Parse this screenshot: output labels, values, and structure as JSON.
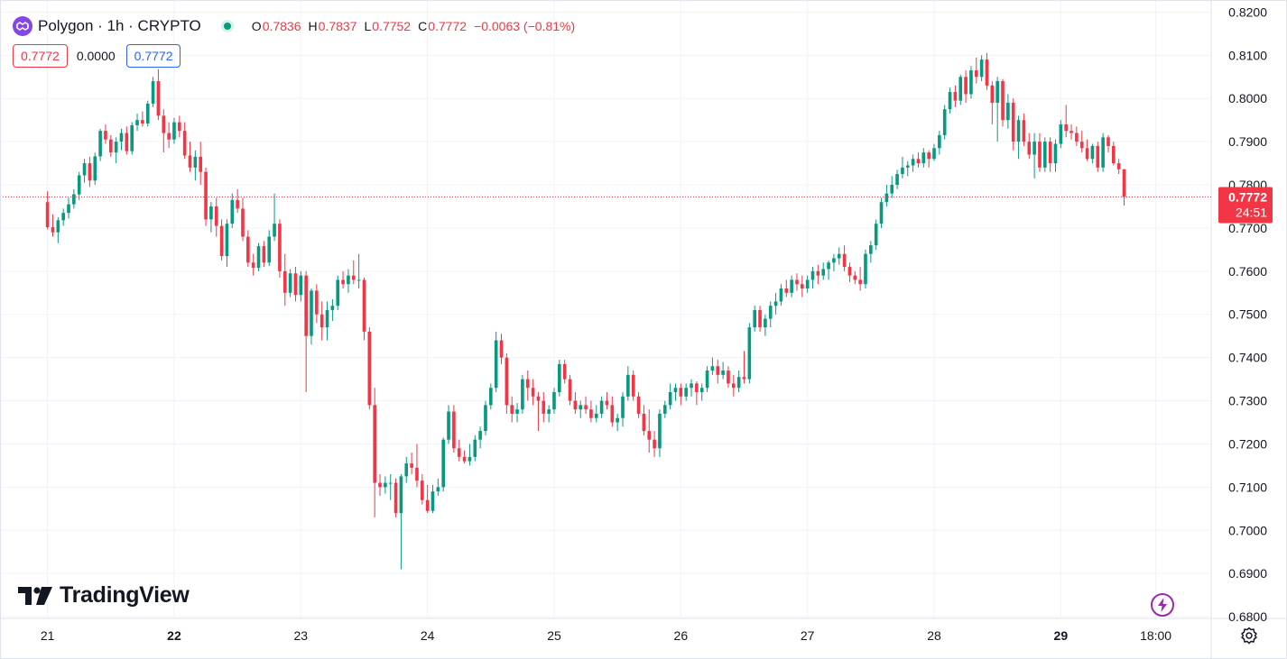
{
  "header": {
    "symbol_title": "Polygon · 1h · CRYPTO",
    "open_label": "O",
    "open": "0.7836",
    "high_label": "H",
    "high": "0.7837",
    "low_label": "L",
    "low": "0.7752",
    "close_label": "C",
    "close": "0.7772",
    "change": "−0.0063 (−0.81%)",
    "icons": {
      "symbol": "polygon-logo-icon",
      "status": "market-open-dot-icon"
    }
  },
  "quick_trade": {
    "sell_price": "0.7772",
    "spread": "0.0000",
    "buy_price": "0.7772"
  },
  "branding": {
    "logo_text": "TradingView",
    "logo_icon": "tradingview-logo-icon"
  },
  "toolbar": {
    "flash_icon": "lightning-icon",
    "settings_icon": "gear-icon"
  },
  "price_label": {
    "price": "0.7772",
    "countdown": "24:51"
  },
  "colors": {
    "up": "#089981",
    "down": "#f23645",
    "grid": "#f0f3fa",
    "text": "#131722",
    "accent": "#2962ff",
    "brand_purple": "#8247e5"
  },
  "chart_data": {
    "type": "candlestick",
    "title": "Polygon · 1h · CRYPTO",
    "timeframe": "1h",
    "y_ticks": [
      "0.6800",
      "0.6900",
      "0.7000",
      "0.7100",
      "0.7200",
      "0.7300",
      "0.7400",
      "0.7500",
      "0.7600",
      "0.7700",
      "0.7800",
      "0.7900",
      "0.8000",
      "0.8100",
      "0.8200"
    ],
    "ylim": [
      0.6796,
      0.8228
    ],
    "x_ticks": [
      {
        "label": "21",
        "x": 0,
        "bold": false
      },
      {
        "label": "22",
        "x": 24,
        "bold": true
      },
      {
        "label": "23",
        "x": 48,
        "bold": false
      },
      {
        "label": "24",
        "x": 72,
        "bold": false
      },
      {
        "label": "25",
        "x": 96,
        "bold": false
      },
      {
        "label": "26",
        "x": 120,
        "bold": false
      },
      {
        "label": "27",
        "x": 144,
        "bold": false
      },
      {
        "label": "28",
        "x": 168,
        "bold": false
      },
      {
        "label": "29",
        "x": 192,
        "bold": true
      },
      {
        "label": "18:00",
        "x": 210,
        "bold": false
      }
    ],
    "xlim": [
      -9,
      220.5
    ],
    "last_price": 0.7772,
    "grid": true,
    "candles": [
      [
        0.776,
        0.7785,
        0.7697,
        0.7702
      ],
      [
        0.7702,
        0.7732,
        0.768,
        0.769
      ],
      [
        0.769,
        0.7725,
        0.7665,
        0.7718
      ],
      [
        0.7718,
        0.7745,
        0.7705,
        0.7735
      ],
      [
        0.7735,
        0.777,
        0.7722,
        0.7755
      ],
      [
        0.7755,
        0.779,
        0.7745,
        0.7778
      ],
      [
        0.7778,
        0.783,
        0.7765,
        0.7822
      ],
      [
        0.7822,
        0.786,
        0.7805,
        0.785
      ],
      [
        0.785,
        0.7865,
        0.7795,
        0.781
      ],
      [
        0.781,
        0.7875,
        0.78,
        0.7866
      ],
      [
        0.7866,
        0.793,
        0.7855,
        0.7925
      ],
      [
        0.7925,
        0.794,
        0.7895,
        0.7905
      ],
      [
        0.7905,
        0.7915,
        0.7865,
        0.7875
      ],
      [
        0.7875,
        0.791,
        0.785,
        0.79
      ],
      [
        0.79,
        0.793,
        0.788,
        0.792
      ],
      [
        0.792,
        0.7935,
        0.787,
        0.7878
      ],
      [
        0.7878,
        0.7945,
        0.787,
        0.7938
      ],
      [
        0.7938,
        0.7965,
        0.7925,
        0.795
      ],
      [
        0.795,
        0.797,
        0.7935,
        0.7942
      ],
      [
        0.7942,
        0.7995,
        0.7935,
        0.7988
      ],
      [
        0.7988,
        0.805,
        0.798,
        0.804
      ],
      [
        0.804,
        0.8068,
        0.795,
        0.796
      ],
      [
        0.796,
        0.7975,
        0.7875,
        0.792
      ],
      [
        0.792,
        0.7945,
        0.7885,
        0.7905
      ],
      [
        0.7905,
        0.7955,
        0.7895,
        0.7945
      ],
      [
        0.7945,
        0.796,
        0.791,
        0.7925
      ],
      [
        0.7925,
        0.7945,
        0.786,
        0.7868
      ],
      [
        0.7868,
        0.79,
        0.783,
        0.784
      ],
      [
        0.784,
        0.788,
        0.781,
        0.7865
      ],
      [
        0.7865,
        0.79,
        0.78,
        0.783
      ],
      [
        0.783,
        0.784,
        0.7705,
        0.772
      ],
      [
        0.772,
        0.776,
        0.769,
        0.775
      ],
      [
        0.775,
        0.777,
        0.768,
        0.7705
      ],
      [
        0.7705,
        0.772,
        0.7625,
        0.7635
      ],
      [
        0.7635,
        0.772,
        0.761,
        0.771
      ],
      [
        0.771,
        0.778,
        0.77,
        0.7765
      ],
      [
        0.7765,
        0.779,
        0.7735,
        0.7745
      ],
      [
        0.7745,
        0.777,
        0.767,
        0.768
      ],
      [
        0.768,
        0.7695,
        0.761,
        0.762
      ],
      [
        0.762,
        0.764,
        0.759,
        0.7608
      ],
      [
        0.7608,
        0.7665,
        0.76,
        0.7658
      ],
      [
        0.7658,
        0.767,
        0.761,
        0.762
      ],
      [
        0.762,
        0.7695,
        0.7612,
        0.768
      ],
      [
        0.768,
        0.778,
        0.767,
        0.771
      ],
      [
        0.771,
        0.772,
        0.7585,
        0.76
      ],
      [
        0.76,
        0.764,
        0.752,
        0.755
      ],
      [
        0.755,
        0.7605,
        0.754,
        0.7595
      ],
      [
        0.7595,
        0.761,
        0.753,
        0.7545
      ],
      [
        0.7545,
        0.76,
        0.753,
        0.759
      ],
      [
        0.759,
        0.76,
        0.732,
        0.745
      ],
      [
        0.745,
        0.756,
        0.743,
        0.7555
      ],
      [
        0.7555,
        0.757,
        0.748,
        0.75
      ],
      [
        0.75,
        0.753,
        0.744,
        0.747
      ],
      [
        0.747,
        0.753,
        0.744,
        0.751
      ],
      [
        0.751,
        0.7535,
        0.7485,
        0.752
      ],
      [
        0.752,
        0.759,
        0.751,
        0.758
      ],
      [
        0.758,
        0.76,
        0.756,
        0.757
      ],
      [
        0.757,
        0.7605,
        0.755,
        0.759
      ],
      [
        0.759,
        0.7625,
        0.757,
        0.758
      ],
      [
        0.758,
        0.764,
        0.756,
        0.758
      ],
      [
        0.758,
        0.7585,
        0.744,
        0.746
      ],
      [
        0.746,
        0.747,
        0.728,
        0.729
      ],
      [
        0.729,
        0.733,
        0.703,
        0.711
      ],
      [
        0.711,
        0.713,
        0.708,
        0.71
      ],
      [
        0.71,
        0.7125,
        0.7085,
        0.711
      ],
      [
        0.711,
        0.713,
        0.707,
        0.711
      ],
      [
        0.711,
        0.712,
        0.703,
        0.704
      ],
      [
        0.704,
        0.713,
        0.691,
        0.7125
      ],
      [
        0.7125,
        0.717,
        0.711,
        0.7155
      ],
      [
        0.7155,
        0.718,
        0.713,
        0.7145
      ],
      [
        0.7145,
        0.72,
        0.71,
        0.7115
      ],
      [
        0.7115,
        0.713,
        0.706,
        0.707
      ],
      [
        0.707,
        0.7105,
        0.704,
        0.7045
      ],
      [
        0.7045,
        0.7105,
        0.704,
        0.709
      ],
      [
        0.709,
        0.712,
        0.708,
        0.71
      ],
      [
        0.71,
        0.7215,
        0.709,
        0.721
      ],
      [
        0.721,
        0.729,
        0.72,
        0.7275
      ],
      [
        0.7275,
        0.729,
        0.718,
        0.719
      ],
      [
        0.719,
        0.721,
        0.716,
        0.717
      ],
      [
        0.717,
        0.7185,
        0.7155,
        0.716
      ],
      [
        0.716,
        0.72,
        0.715,
        0.717
      ],
      [
        0.717,
        0.722,
        0.716,
        0.721
      ],
      [
        0.721,
        0.724,
        0.719,
        0.723
      ],
      [
        0.723,
        0.73,
        0.722,
        0.729
      ],
      [
        0.729,
        0.734,
        0.728,
        0.733
      ],
      [
        0.733,
        0.746,
        0.732,
        0.744
      ],
      [
        0.744,
        0.7455,
        0.7385,
        0.74
      ],
      [
        0.74,
        0.741,
        0.727,
        0.729
      ],
      [
        0.729,
        0.731,
        0.725,
        0.727
      ],
      [
        0.727,
        0.7295,
        0.725,
        0.728
      ],
      [
        0.728,
        0.736,
        0.727,
        0.735
      ],
      [
        0.735,
        0.737,
        0.73,
        0.733
      ],
      [
        0.733,
        0.735,
        0.729,
        0.731
      ],
      [
        0.731,
        0.732,
        0.723,
        0.73
      ],
      [
        0.73,
        0.732,
        0.725,
        0.727
      ],
      [
        0.727,
        0.729,
        0.725,
        0.728
      ],
      [
        0.728,
        0.733,
        0.727,
        0.732
      ],
      [
        0.732,
        0.7395,
        0.731,
        0.7385
      ],
      [
        0.7385,
        0.7395,
        0.734,
        0.735
      ],
      [
        0.735,
        0.736,
        0.729,
        0.73
      ],
      [
        0.73,
        0.732,
        0.727,
        0.728
      ],
      [
        0.728,
        0.73,
        0.726,
        0.729
      ],
      [
        0.729,
        0.731,
        0.727,
        0.728
      ],
      [
        0.728,
        0.73,
        0.725,
        0.726
      ],
      [
        0.726,
        0.729,
        0.725,
        0.727
      ],
      [
        0.727,
        0.731,
        0.726,
        0.73
      ],
      [
        0.73,
        0.732,
        0.728,
        0.729
      ],
      [
        0.729,
        0.731,
        0.724,
        0.725
      ],
      [
        0.725,
        0.727,
        0.723,
        0.726
      ],
      [
        0.726,
        0.732,
        0.724,
        0.731
      ],
      [
        0.731,
        0.738,
        0.73,
        0.736
      ],
      [
        0.736,
        0.737,
        0.73,
        0.731
      ],
      [
        0.731,
        0.732,
        0.726,
        0.727
      ],
      [
        0.727,
        0.729,
        0.722,
        0.723
      ],
      [
        0.723,
        0.728,
        0.718,
        0.721
      ],
      [
        0.721,
        0.723,
        0.717,
        0.719
      ],
      [
        0.719,
        0.728,
        0.717,
        0.727
      ],
      [
        0.727,
        0.73,
        0.726,
        0.729
      ],
      [
        0.729,
        0.734,
        0.728,
        0.732
      ],
      [
        0.732,
        0.734,
        0.73,
        0.733
      ],
      [
        0.733,
        0.734,
        0.729,
        0.731
      ],
      [
        0.731,
        0.734,
        0.73,
        0.733
      ],
      [
        0.733,
        0.735,
        0.731,
        0.734
      ],
      [
        0.734,
        0.7345,
        0.729,
        0.732
      ],
      [
        0.732,
        0.734,
        0.73,
        0.733
      ],
      [
        0.733,
        0.738,
        0.732,
        0.737
      ],
      [
        0.737,
        0.74,
        0.736,
        0.738
      ],
      [
        0.738,
        0.7395,
        0.734,
        0.736
      ],
      [
        0.736,
        0.739,
        0.735,
        0.737
      ],
      [
        0.737,
        0.738,
        0.733,
        0.734
      ],
      [
        0.734,
        0.736,
        0.731,
        0.733
      ],
      [
        0.733,
        0.737,
        0.732,
        0.7355
      ],
      [
        0.7355,
        0.7415,
        0.734,
        0.735
      ],
      [
        0.735,
        0.748,
        0.734,
        0.747
      ],
      [
        0.747,
        0.752,
        0.746,
        0.751
      ],
      [
        0.751,
        0.752,
        0.746,
        0.747
      ],
      [
        0.747,
        0.75,
        0.745,
        0.749
      ],
      [
        0.749,
        0.753,
        0.747,
        0.752
      ],
      [
        0.752,
        0.755,
        0.75,
        0.753
      ],
      [
        0.753,
        0.757,
        0.752,
        0.756
      ],
      [
        0.756,
        0.758,
        0.754,
        0.755
      ],
      [
        0.755,
        0.759,
        0.754,
        0.758
      ],
      [
        0.758,
        0.7595,
        0.7555,
        0.757
      ],
      [
        0.757,
        0.759,
        0.754,
        0.756
      ],
      [
        0.756,
        0.759,
        0.755,
        0.758
      ],
      [
        0.758,
        0.761,
        0.756,
        0.76
      ],
      [
        0.76,
        0.7615,
        0.757,
        0.759
      ],
      [
        0.759,
        0.762,
        0.758,
        0.7605
      ],
      [
        0.7605,
        0.7625,
        0.758,
        0.762
      ],
      [
        0.762,
        0.764,
        0.76,
        0.763
      ],
      [
        0.763,
        0.7655,
        0.7615,
        0.764
      ],
      [
        0.764,
        0.766,
        0.76,
        0.761
      ],
      [
        0.761,
        0.762,
        0.7575,
        0.759
      ],
      [
        0.759,
        0.76,
        0.757,
        0.758
      ],
      [
        0.758,
        0.761,
        0.7555,
        0.757
      ],
      [
        0.757,
        0.765,
        0.756,
        0.764
      ],
      [
        0.764,
        0.767,
        0.762,
        0.766
      ],
      [
        0.766,
        0.772,
        0.765,
        0.771
      ],
      [
        0.771,
        0.777,
        0.77,
        0.776
      ],
      [
        0.776,
        0.78,
        0.775,
        0.778
      ],
      [
        0.778,
        0.782,
        0.777,
        0.78
      ],
      [
        0.78,
        0.7835,
        0.779,
        0.7825
      ],
      [
        0.7825,
        0.7865,
        0.7815,
        0.784
      ],
      [
        0.784,
        0.7855,
        0.782,
        0.7845
      ],
      [
        0.7845,
        0.787,
        0.783,
        0.786
      ],
      [
        0.786,
        0.7875,
        0.784,
        0.785
      ],
      [
        0.785,
        0.7885,
        0.784,
        0.7875
      ],
      [
        0.7875,
        0.788,
        0.784,
        0.786
      ],
      [
        0.786,
        0.7895,
        0.7855,
        0.7885
      ],
      [
        0.7885,
        0.7925,
        0.787,
        0.7915
      ],
      [
        0.7915,
        0.7985,
        0.7905,
        0.7975
      ],
      [
        0.7975,
        0.8025,
        0.7965,
        0.8015
      ],
      [
        0.8015,
        0.803,
        0.798,
        0.7995
      ],
      [
        0.7995,
        0.8055,
        0.7985,
        0.805
      ],
      [
        0.805,
        0.8065,
        0.799,
        0.801
      ],
      [
        0.801,
        0.8075,
        0.8,
        0.8065
      ],
      [
        0.8065,
        0.8095,
        0.8035,
        0.805
      ],
      [
        0.805,
        0.81,
        0.804,
        0.809
      ],
      [
        0.809,
        0.8105,
        0.802,
        0.803
      ],
      [
        0.803,
        0.804,
        0.794,
        0.799
      ],
      [
        0.799,
        0.805,
        0.79,
        0.804
      ],
      [
        0.804,
        0.8045,
        0.7935,
        0.795
      ],
      [
        0.795,
        0.801,
        0.793,
        0.799
      ],
      [
        0.799,
        0.8,
        0.788,
        0.79
      ],
      [
        0.79,
        0.796,
        0.786,
        0.795
      ],
      [
        0.795,
        0.7965,
        0.789,
        0.79
      ],
      [
        0.79,
        0.792,
        0.786,
        0.787
      ],
      [
        0.787,
        0.792,
        0.7815,
        0.79
      ],
      [
        0.79,
        0.792,
        0.783,
        0.784
      ],
      [
        0.784,
        0.791,
        0.783,
        0.79
      ],
      [
        0.79,
        0.791,
        0.783,
        0.785
      ],
      [
        0.785,
        0.7905,
        0.783,
        0.7895
      ],
      [
        0.7895,
        0.795,
        0.7885,
        0.794
      ],
      [
        0.794,
        0.7985,
        0.791,
        0.7925
      ],
      [
        0.7925,
        0.794,
        0.7905,
        0.792
      ],
      [
        0.792,
        0.7935,
        0.789,
        0.79
      ],
      [
        0.79,
        0.7925,
        0.7875,
        0.7885
      ],
      [
        0.7885,
        0.7905,
        0.7855,
        0.786
      ],
      [
        0.786,
        0.7895,
        0.785,
        0.789
      ],
      [
        0.789,
        0.79,
        0.783,
        0.784
      ],
      [
        0.784,
        0.792,
        0.783,
        0.791
      ],
      [
        0.791,
        0.7915,
        0.7875,
        0.789
      ],
      [
        0.789,
        0.79,
        0.7845,
        0.785
      ],
      [
        0.785,
        0.786,
        0.7825,
        0.7836
      ],
      [
        0.7836,
        0.7837,
        0.7752,
        0.7772
      ]
    ]
  }
}
